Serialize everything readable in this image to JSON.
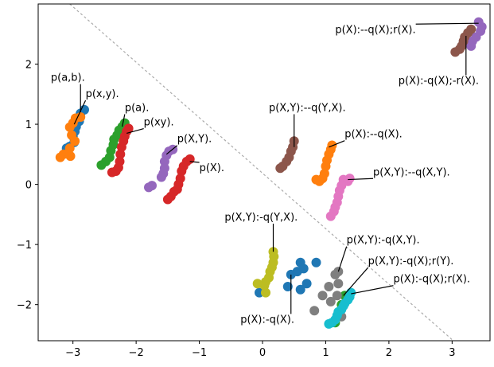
{
  "chart_data": {
    "type": "scatter",
    "title": "",
    "xlabel": "",
    "ylabel": "",
    "xlim": [
      -3.55,
      3.6
    ],
    "ylim": [
      -2.6,
      3.0
    ],
    "xticks": [
      -3,
      -2,
      -1,
      0,
      1,
      2,
      3
    ],
    "yticks": [
      -2,
      -1,
      0,
      1,
      2
    ],
    "xtick_labels": [
      "−3",
      "−2",
      "−1",
      "0",
      "1",
      "2",
      "3"
    ],
    "ytick_labels": [
      "−2",
      "−1",
      "0",
      "1",
      "2"
    ],
    "grid": false,
    "legend": "none",
    "diagonal_line": {
      "x1": -3.05,
      "y1": 3.0,
      "x2": 3.02,
      "y2": -2.6,
      "style": "dashed",
      "color": "#aaaaaa"
    },
    "series": [
      {
        "color": "#1f77b4",
        "points": [
          [
            -2.82,
            1.24
          ],
          [
            -2.88,
            1.18
          ],
          [
            -2.9,
            1.05
          ],
          [
            -2.95,
            0.96
          ],
          [
            -2.97,
            0.88
          ],
          [
            -3.0,
            0.8
          ],
          [
            -2.98,
            0.7
          ],
          [
            -3.05,
            0.63
          ],
          [
            -3.1,
            0.6
          ],
          [
            -0.05,
            -1.8
          ],
          [
            0.4,
            -1.7
          ],
          [
            0.45,
            -1.5
          ],
          [
            0.6,
            -1.3
          ],
          [
            0.55,
            -1.45
          ],
          [
            0.65,
            -1.4
          ],
          [
            0.7,
            -1.65
          ],
          [
            0.6,
            -1.75
          ],
          [
            0.85,
            -1.3
          ]
        ]
      },
      {
        "color": "#ff7f0e",
        "points": [
          [
            -2.88,
            1.12
          ],
          [
            -2.96,
            1.1
          ],
          [
            -3.0,
            1.02
          ],
          [
            -3.05,
            0.95
          ],
          [
            -3.02,
            0.82
          ],
          [
            -2.97,
            0.72
          ],
          [
            -3.05,
            0.6
          ],
          [
            -3.15,
            0.5
          ],
          [
            -3.2,
            0.45
          ],
          [
            -3.04,
            0.47
          ],
          [
            1.1,
            0.65
          ],
          [
            1.08,
            0.58
          ],
          [
            1.05,
            0.5
          ],
          [
            1.02,
            0.4
          ],
          [
            1.0,
            0.3
          ],
          [
            0.98,
            0.18
          ],
          [
            0.95,
            0.1
          ],
          [
            0.9,
            0.05
          ],
          [
            0.85,
            0.08
          ]
        ]
      },
      {
        "color": "#2ca02c",
        "points": [
          [
            -2.18,
            1.02
          ],
          [
            -2.22,
            0.96
          ],
          [
            -2.27,
            0.9
          ],
          [
            -2.3,
            0.82
          ],
          [
            -2.35,
            0.75
          ],
          [
            -2.36,
            0.66
          ],
          [
            -2.4,
            0.56
          ],
          [
            -2.42,
            0.45
          ],
          [
            -2.48,
            0.38
          ],
          [
            -2.55,
            0.32
          ],
          [
            1.3,
            -1.85
          ],
          [
            1.25,
            -2.0
          ],
          [
            1.2,
            -2.15
          ],
          [
            1.15,
            -2.3
          ]
        ]
      },
      {
        "color": "#d62728",
        "points": [
          [
            -2.12,
            0.93
          ],
          [
            -2.15,
            0.88
          ],
          [
            -2.18,
            0.8
          ],
          [
            -2.2,
            0.72
          ],
          [
            -2.23,
            0.62
          ],
          [
            -2.25,
            0.5
          ],
          [
            -2.26,
            0.38
          ],
          [
            -2.28,
            0.28
          ],
          [
            -2.32,
            0.22
          ],
          [
            -2.38,
            0.2
          ],
          [
            -1.15,
            0.42
          ],
          [
            -1.2,
            0.38
          ],
          [
            -1.25,
            0.3
          ],
          [
            -1.28,
            0.22
          ],
          [
            -1.3,
            0.1
          ],
          [
            -1.33,
            0.0
          ],
          [
            -1.35,
            -0.08
          ],
          [
            -1.4,
            -0.12
          ],
          [
            -1.45,
            -0.2
          ],
          [
            -1.5,
            -0.25
          ]
        ]
      },
      {
        "color": "#9467bd",
        "points": [
          [
            -1.42,
            0.58
          ],
          [
            -1.48,
            0.55
          ],
          [
            -1.52,
            0.48
          ],
          [
            -1.55,
            0.38
          ],
          [
            -1.55,
            0.27
          ],
          [
            -1.57,
            0.18
          ],
          [
            -1.6,
            0.12
          ],
          [
            -1.75,
            -0.02
          ],
          [
            -1.8,
            -0.05
          ],
          [
            3.42,
            2.7
          ],
          [
            3.47,
            2.62
          ],
          [
            3.45,
            2.55
          ],
          [
            3.38,
            2.45
          ],
          [
            3.32,
            2.38
          ],
          [
            3.3,
            2.3
          ]
        ]
      },
      {
        "color": "#8c564b",
        "points": [
          [
            0.5,
            0.72
          ],
          [
            0.48,
            0.62
          ],
          [
            0.45,
            0.55
          ],
          [
            0.42,
            0.45
          ],
          [
            0.38,
            0.38
          ],
          [
            0.32,
            0.3
          ],
          [
            0.28,
            0.27
          ],
          [
            3.3,
            2.58
          ],
          [
            3.25,
            2.52
          ],
          [
            3.2,
            2.45
          ],
          [
            3.18,
            2.38
          ],
          [
            3.15,
            2.3
          ],
          [
            3.12,
            2.25
          ],
          [
            3.05,
            2.2
          ]
        ]
      },
      {
        "color": "#e377c2",
        "points": [
          [
            1.38,
            0.1
          ],
          [
            1.35,
            0.05
          ],
          [
            1.28,
            0.08
          ],
          [
            1.25,
            -0.02
          ],
          [
            1.22,
            -0.1
          ],
          [
            1.2,
            -0.2
          ],
          [
            1.18,
            -0.3
          ],
          [
            1.15,
            -0.38
          ],
          [
            1.13,
            -0.45
          ],
          [
            1.08,
            -0.53
          ]
        ]
      },
      {
        "color": "#7f7f7f",
        "points": [
          [
            1.2,
            -1.45
          ],
          [
            1.15,
            -1.5
          ],
          [
            1.2,
            -1.65
          ],
          [
            1.05,
            -1.7
          ],
          [
            1.18,
            -1.85
          ],
          [
            1.08,
            -1.95
          ],
          [
            0.95,
            -1.85
          ],
          [
            0.82,
            -2.1
          ],
          [
            1.25,
            -2.2
          ]
        ]
      },
      {
        "color": "#bcbd22",
        "points": [
          [
            0.17,
            -1.12
          ],
          [
            0.18,
            -1.2
          ],
          [
            0.17,
            -1.3
          ],
          [
            0.15,
            -1.38
          ],
          [
            0.12,
            -1.45
          ],
          [
            0.1,
            -1.55
          ],
          [
            0.05,
            -1.62
          ],
          [
            0.03,
            -1.68
          ],
          [
            -0.08,
            -1.65
          ],
          [
            0.05,
            -1.8
          ]
        ]
      },
      {
        "color": "#17becf",
        "points": [
          [
            1.4,
            -1.8
          ],
          [
            1.38,
            -1.87
          ],
          [
            1.35,
            -1.92
          ],
          [
            1.3,
            -1.98
          ],
          [
            1.28,
            -2.02
          ],
          [
            1.25,
            -2.08
          ],
          [
            1.2,
            -2.12
          ],
          [
            1.18,
            -2.18
          ],
          [
            1.15,
            -2.25
          ],
          [
            1.1,
            -2.3
          ],
          [
            1.05,
            -2.32
          ]
        ]
      }
    ],
    "annotations": [
      {
        "text": "p(a,b).",
        "label_xy": [
          -3.35,
          1.72
        ],
        "point_xy": [
          -2.88,
          1.2
        ]
      },
      {
        "text": "p(x,y).",
        "label_xy": [
          -2.8,
          1.45
        ],
        "point_xy": [
          -2.98,
          1.0
        ]
      },
      {
        "text": "p(a).",
        "label_xy": [
          -2.18,
          1.22
        ],
        "point_xy": [
          -2.22,
          0.96
        ]
      },
      {
        "text": "p(xy).",
        "label_xy": [
          -1.88,
          0.98
        ],
        "point_xy": [
          -2.15,
          0.85
        ]
      },
      {
        "text": "p(X,Y).",
        "label_xy": [
          -1.35,
          0.7
        ],
        "point_xy": [
          -1.52,
          0.5
        ]
      },
      {
        "text": "p(X).",
        "label_xy": [
          -1.0,
          0.22
        ],
        "point_xy": [
          -1.15,
          0.38
        ]
      },
      {
        "text": "p(X,Y):--q(Y,X).",
        "label_xy": [
          0.1,
          1.22
        ],
        "point_xy": [
          0.5,
          0.62
        ]
      },
      {
        "text": "p(X):--q(X).",
        "label_xy": [
          1.3,
          0.78
        ],
        "point_xy": [
          1.05,
          0.62
        ]
      },
      {
        "text": "p(X,Y):--q(X,Y).",
        "label_xy": [
          1.75,
          0.15
        ],
        "point_xy": [
          1.35,
          0.08
        ]
      },
      {
        "text": "p(X):--q(X);r(X).",
        "label_xy": [
          1.15,
          2.52
        ],
        "point_xy": [
          3.42,
          2.68
        ]
      },
      {
        "text": "p(X):-q(X);-r(X).",
        "label_xy": [
          2.15,
          1.67
        ],
        "point_xy": [
          3.22,
          2.47
        ]
      },
      {
        "text": "p(X,Y):-q(Y,X).",
        "label_xy": [
          -0.6,
          -0.6
        ],
        "point_xy": [
          0.17,
          -1.12
        ]
      },
      {
        "text": "p(X):-q(X).",
        "label_xy": [
          -0.35,
          -2.3
        ],
        "point_xy": [
          0.45,
          -1.5
        ]
      },
      {
        "text": "p(X,Y):-q(X,Y).",
        "label_xy": [
          1.33,
          -0.98
        ],
        "point_xy": [
          1.2,
          -1.45
        ]
      },
      {
        "text": "p(X,Y):-q(X);r(Y).",
        "label_xy": [
          1.67,
          -1.33
        ],
        "point_xy": [
          1.28,
          -1.85
        ]
      },
      {
        "text": "p(X):-q(X);r(X).",
        "label_xy": [
          2.07,
          -1.63
        ],
        "point_xy": [
          1.4,
          -1.82
        ]
      }
    ]
  }
}
